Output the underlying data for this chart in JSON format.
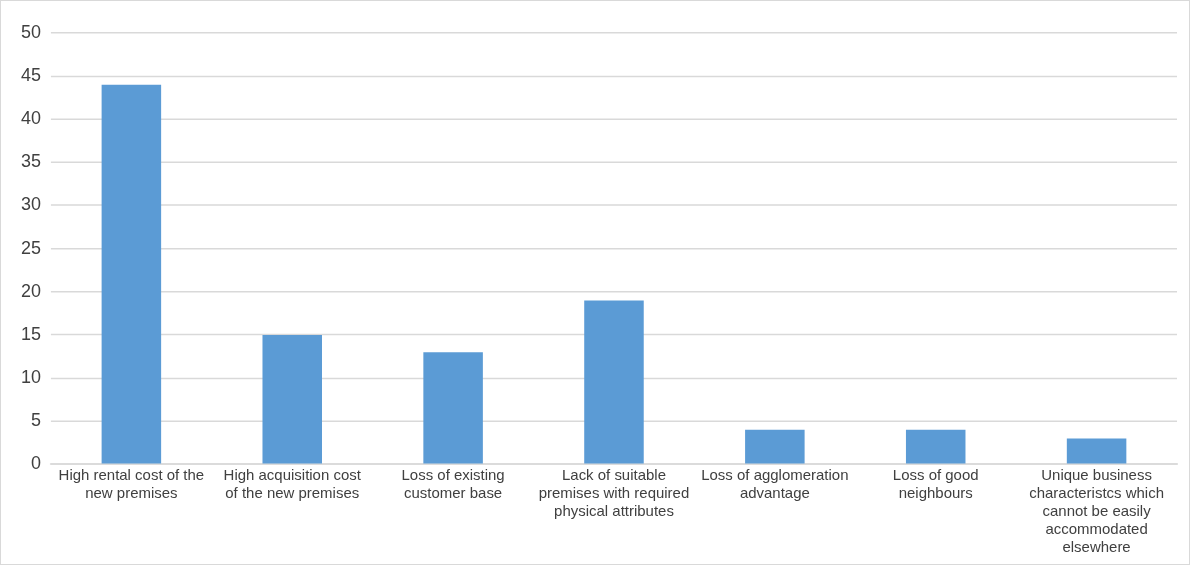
{
  "chart_data": {
    "type": "bar",
    "categories": [
      "High rental cost of the new premises",
      "High acquisition cost of the new premises",
      "Loss of existing customer base",
      "Lack of suitable premises with required physical attributes",
      "Loss of agglomeration advantage",
      "Loss of good neighbours",
      "Unique business characteristcs which cannot be easily accommodated elsewhere"
    ],
    "values": [
      44,
      15,
      13,
      19,
      4,
      4,
      3
    ],
    "color": "#5b9bd5",
    "ylim": [
      0,
      50
    ],
    "yticks": [
      0,
      5,
      10,
      15,
      20,
      25,
      30,
      35,
      40,
      45,
      50
    ],
    "grid": "y",
    "legend": false
  }
}
